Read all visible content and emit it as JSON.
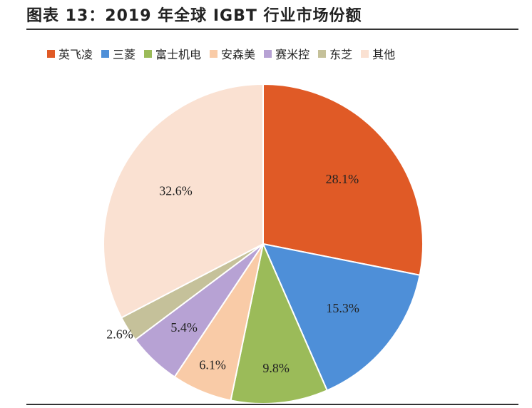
{
  "title": "图表 13：2019 年全球 IGBT 行业市场份额",
  "chart_data": {
    "type": "pie",
    "categories": [
      "英飞凌",
      "三菱",
      "富士机电",
      "安森美",
      "赛米控",
      "东芝",
      "其他"
    ],
    "values": [
      28.1,
      15.3,
      9.8,
      6.1,
      5.4,
      2.6,
      32.6
    ],
    "labels": [
      "28.1%",
      "15.3%",
      "9.8%",
      "6.1%",
      "5.4%",
      "2.6%",
      "32.6%"
    ],
    "colors": [
      "#E05A26",
      "#4E8FD8",
      "#9BBB59",
      "#F9CBA7",
      "#B7A2D4",
      "#C5C19A",
      "#FAE1D2"
    ],
    "legend_position": "top",
    "start_angle": "12 o'clock, clockwise"
  }
}
